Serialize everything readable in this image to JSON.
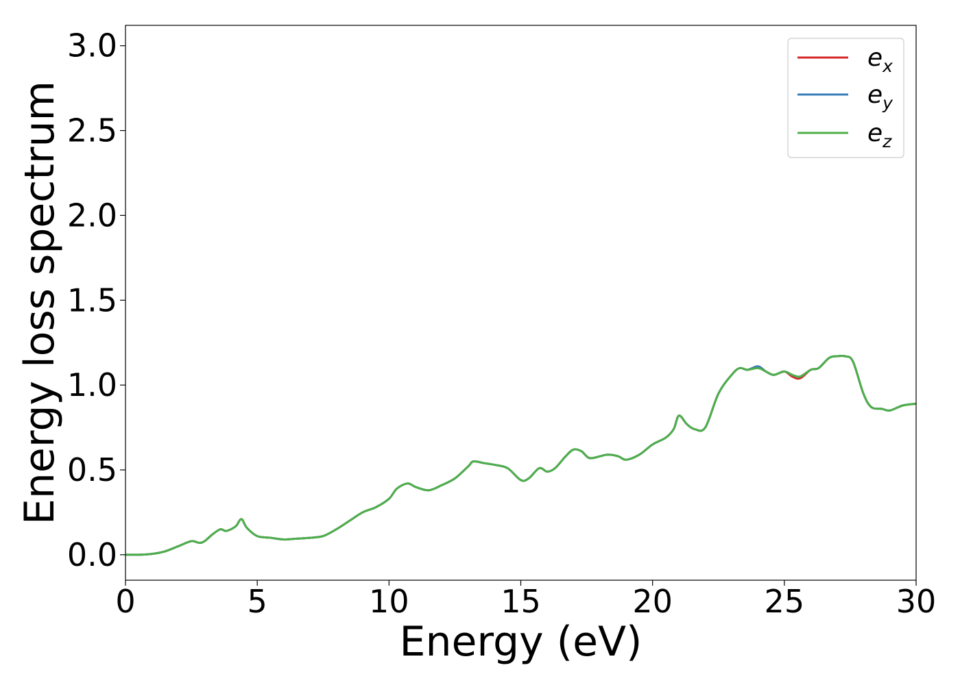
{
  "chart_data": {
    "type": "line",
    "title": "",
    "xlabel": "Energy (eV)",
    "ylabel": "Energy loss spectrum",
    "xlim": [
      0,
      30
    ],
    "ylim": [
      -0.15,
      3.12
    ],
    "xticks": [
      0,
      5,
      10,
      15,
      20,
      25,
      30
    ],
    "xtick_labels": [
      "0",
      "5",
      "10",
      "15",
      "20",
      "25",
      "30"
    ],
    "yticks": [
      0.0,
      0.5,
      1.0,
      1.5,
      2.0,
      2.5,
      3.0
    ],
    "ytick_labels": [
      "0.0",
      "0.5",
      "1.0",
      "1.5",
      "2.0",
      "2.5",
      "3.0"
    ],
    "grid": false,
    "legend_position": "top-right",
    "series": [
      {
        "name": "e_x",
        "legend_base": "e",
        "legend_sub": "x",
        "color": "#d62728",
        "x": [
          0,
          0.5,
          1.0,
          1.5,
          2.0,
          2.5,
          2.8,
          3.0,
          3.3,
          3.6,
          3.8,
          4.0,
          4.2,
          4.4,
          4.6,
          5.0,
          5.5,
          6.0,
          6.5,
          7.0,
          7.5,
          8.0,
          8.5,
          9.0,
          9.5,
          10.0,
          10.3,
          10.7,
          11.0,
          11.5,
          12.0,
          12.5,
          13.0,
          13.2,
          13.6,
          14.0,
          14.5,
          15.0,
          15.3,
          15.7,
          16.0,
          16.3,
          16.7,
          17.0,
          17.3,
          17.6,
          18.0,
          18.3,
          18.7,
          19.0,
          19.5,
          20.0,
          20.5,
          20.8,
          21.0,
          21.3,
          21.6,
          22.0,
          22.5,
          23.0,
          23.3,
          23.6,
          24.0,
          24.3,
          24.6,
          25.0,
          25.3,
          25.6,
          26.0,
          26.3,
          26.7,
          27.0,
          27.3,
          27.6,
          28.0,
          28.3,
          28.7,
          29.0,
          29.5,
          30.0
        ],
        "y": [
          0.0,
          0.0,
          0.005,
          0.02,
          0.05,
          0.08,
          0.07,
          0.08,
          0.12,
          0.15,
          0.14,
          0.15,
          0.17,
          0.21,
          0.16,
          0.11,
          0.1,
          0.09,
          0.095,
          0.1,
          0.11,
          0.15,
          0.2,
          0.25,
          0.28,
          0.33,
          0.39,
          0.42,
          0.4,
          0.38,
          0.41,
          0.45,
          0.52,
          0.55,
          0.54,
          0.53,
          0.51,
          0.44,
          0.45,
          0.51,
          0.49,
          0.51,
          0.58,
          0.62,
          0.61,
          0.57,
          0.58,
          0.59,
          0.58,
          0.56,
          0.59,
          0.65,
          0.69,
          0.74,
          0.82,
          0.77,
          0.74,
          0.75,
          0.95,
          1.06,
          1.1,
          1.09,
          1.11,
          1.08,
          1.06,
          1.08,
          1.05,
          1.04,
          1.09,
          1.1,
          1.16,
          1.17,
          1.17,
          1.14,
          0.95,
          0.87,
          0.86,
          0.85,
          0.88,
          0.89
        ]
      },
      {
        "name": "e_y",
        "legend_base": "e",
        "legend_sub": "y",
        "color": "#377eb8",
        "x": [
          0,
          0.5,
          1.0,
          1.5,
          2.0,
          2.5,
          2.8,
          3.0,
          3.3,
          3.6,
          3.8,
          4.0,
          4.2,
          4.4,
          4.6,
          5.0,
          5.5,
          6.0,
          6.5,
          7.0,
          7.5,
          8.0,
          8.5,
          9.0,
          9.5,
          10.0,
          10.3,
          10.7,
          11.0,
          11.5,
          12.0,
          12.5,
          13.0,
          13.2,
          13.6,
          14.0,
          14.5,
          15.0,
          15.3,
          15.7,
          16.0,
          16.3,
          16.7,
          17.0,
          17.3,
          17.6,
          18.0,
          18.3,
          18.7,
          19.0,
          19.5,
          20.0,
          20.5,
          20.8,
          21.0,
          21.3,
          21.6,
          22.0,
          22.5,
          23.0,
          23.3,
          23.6,
          24.0,
          24.3,
          24.6,
          25.0,
          25.3,
          25.6,
          26.0,
          26.3,
          26.7,
          27.0,
          27.3,
          27.6,
          28.0,
          28.3,
          28.7,
          29.0,
          29.5,
          30.0
        ],
        "y": [
          0.0,
          0.0,
          0.005,
          0.02,
          0.05,
          0.08,
          0.07,
          0.08,
          0.12,
          0.15,
          0.14,
          0.15,
          0.17,
          0.21,
          0.16,
          0.11,
          0.1,
          0.09,
          0.095,
          0.1,
          0.11,
          0.15,
          0.2,
          0.25,
          0.28,
          0.33,
          0.39,
          0.42,
          0.4,
          0.38,
          0.41,
          0.45,
          0.52,
          0.55,
          0.54,
          0.53,
          0.51,
          0.44,
          0.45,
          0.51,
          0.49,
          0.51,
          0.58,
          0.62,
          0.61,
          0.57,
          0.58,
          0.59,
          0.58,
          0.56,
          0.59,
          0.65,
          0.69,
          0.74,
          0.82,
          0.77,
          0.74,
          0.75,
          0.95,
          1.06,
          1.1,
          1.09,
          1.11,
          1.08,
          1.06,
          1.08,
          1.06,
          1.05,
          1.09,
          1.1,
          1.16,
          1.17,
          1.17,
          1.14,
          0.95,
          0.87,
          0.86,
          0.85,
          0.88,
          0.89
        ]
      },
      {
        "name": "e_z",
        "legend_base": "e",
        "legend_sub": "z",
        "color": "#4daf4a",
        "x": [
          0,
          0.5,
          1.0,
          1.5,
          2.0,
          2.5,
          2.8,
          3.0,
          3.3,
          3.6,
          3.8,
          4.0,
          4.2,
          4.4,
          4.6,
          5.0,
          5.5,
          6.0,
          6.5,
          7.0,
          7.5,
          8.0,
          8.5,
          9.0,
          9.5,
          10.0,
          10.3,
          10.7,
          11.0,
          11.5,
          12.0,
          12.5,
          13.0,
          13.2,
          13.6,
          14.0,
          14.5,
          15.0,
          15.3,
          15.7,
          16.0,
          16.3,
          16.7,
          17.0,
          17.3,
          17.6,
          18.0,
          18.3,
          18.7,
          19.0,
          19.5,
          20.0,
          20.5,
          20.8,
          21.0,
          21.3,
          21.6,
          22.0,
          22.5,
          23.0,
          23.3,
          23.6,
          24.0,
          24.3,
          24.6,
          25.0,
          25.3,
          25.6,
          26.0,
          26.3,
          26.7,
          27.0,
          27.3,
          27.6,
          28.0,
          28.3,
          28.7,
          29.0,
          29.5,
          30.0
        ],
        "y": [
          0.0,
          0.0,
          0.005,
          0.02,
          0.05,
          0.08,
          0.07,
          0.08,
          0.12,
          0.15,
          0.14,
          0.15,
          0.17,
          0.21,
          0.16,
          0.11,
          0.1,
          0.09,
          0.095,
          0.1,
          0.11,
          0.15,
          0.2,
          0.25,
          0.28,
          0.33,
          0.39,
          0.42,
          0.4,
          0.38,
          0.41,
          0.45,
          0.52,
          0.55,
          0.54,
          0.53,
          0.51,
          0.44,
          0.45,
          0.51,
          0.49,
          0.51,
          0.58,
          0.62,
          0.61,
          0.57,
          0.58,
          0.59,
          0.58,
          0.56,
          0.59,
          0.65,
          0.69,
          0.74,
          0.82,
          0.77,
          0.74,
          0.75,
          0.95,
          1.06,
          1.1,
          1.09,
          1.1,
          1.08,
          1.06,
          1.08,
          1.06,
          1.05,
          1.09,
          1.1,
          1.16,
          1.17,
          1.17,
          1.14,
          0.95,
          0.87,
          0.86,
          0.85,
          0.88,
          0.89
        ]
      }
    ]
  }
}
